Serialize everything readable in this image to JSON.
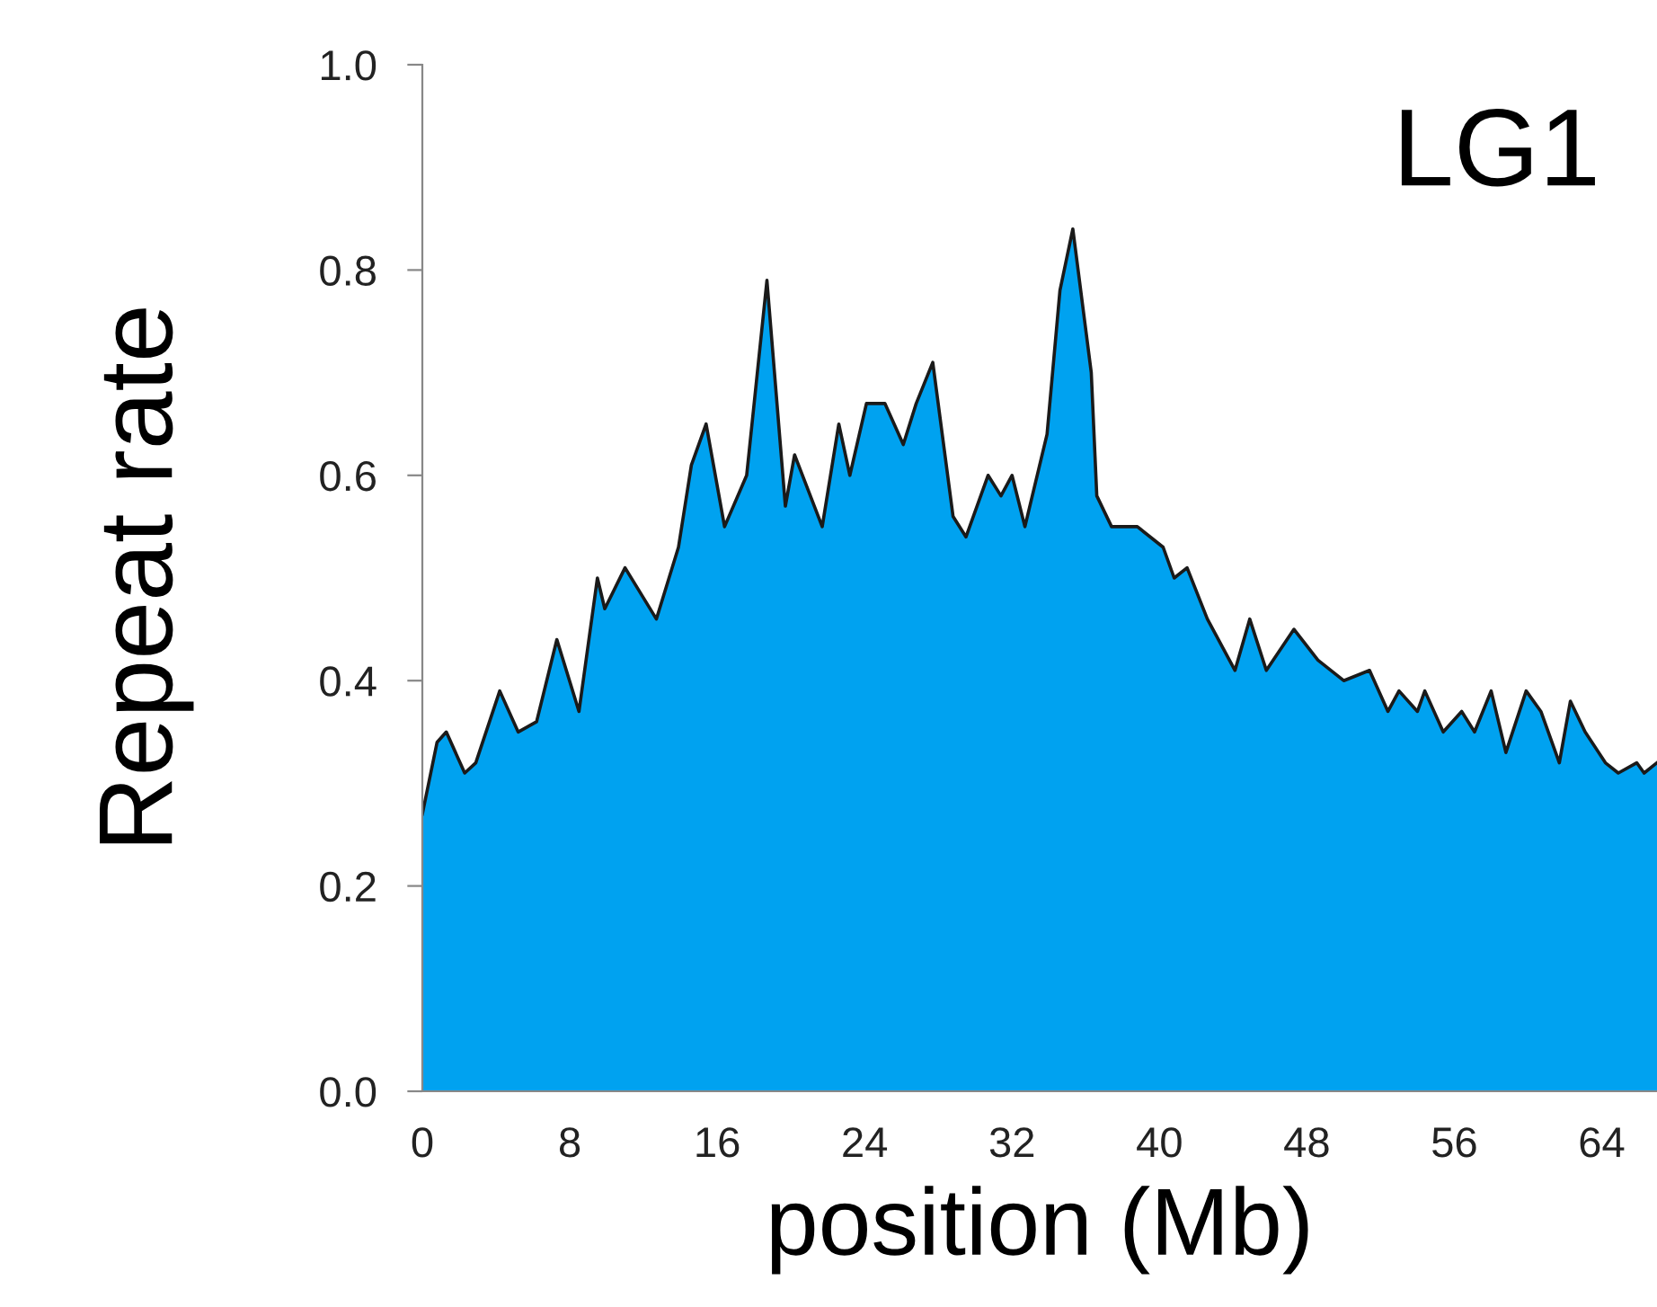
{
  "chart_data": {
    "type": "area",
    "title": "LG1",
    "xlabel": "position (Mb)",
    "ylabel": "Repeat rate",
    "xlim": [
      0,
      67
    ],
    "ylim": [
      0,
      1.0
    ],
    "xticks": [
      0,
      8,
      16,
      24,
      32,
      40,
      48,
      56,
      64
    ],
    "yticks": [
      {
        "value": 0,
        "label": "0.0"
      },
      0.2,
      0.4,
      0.6,
      0.8,
      {
        "value": 1,
        "label": "1.0"
      }
    ],
    "grid": false,
    "legend": false,
    "series": [
      {
        "color": "#00a2f0",
        "x": [
          0,
          0.8,
          1.3,
          2.3,
          2.9,
          4.2,
          5.2,
          6.2,
          7.3,
          8.5,
          9.5,
          9.9,
          11.0,
          12.7,
          13.9,
          14.6,
          15.4,
          16.4,
          17.6,
          18.7,
          19.7,
          20.2,
          21.7,
          22.6,
          23.2,
          24.1,
          25.1,
          26.1,
          26.8,
          27.7,
          28.8,
          29.5,
          30.7,
          31.4,
          32.0,
          32.7,
          33.9,
          34.6,
          35.3,
          36.3,
          36.6,
          37.4,
          38.8,
          40.2,
          40.8,
          41.5,
          42.6,
          44.1,
          44.9,
          45.8,
          47.3,
          48.6,
          50.0,
          51.4,
          52.4,
          53.0,
          54.0,
          54.4,
          55.4,
          56.4,
          57.1,
          58.0,
          58.8,
          59.9,
          60.7,
          61.7,
          62.3,
          63.1,
          64.2,
          64.9,
          65.9,
          66.3,
          67.0
        ],
        "values": [
          0.27,
          0.34,
          0.35,
          0.31,
          0.32,
          0.39,
          0.35,
          0.36,
          0.44,
          0.37,
          0.5,
          0.47,
          0.51,
          0.46,
          0.53,
          0.61,
          0.65,
          0.55,
          0.6,
          0.79,
          0.57,
          0.62,
          0.55,
          0.65,
          0.6,
          0.67,
          0.67,
          0.63,
          0.67,
          0.71,
          0.56,
          0.54,
          0.6,
          0.58,
          0.6,
          0.55,
          0.64,
          0.78,
          0.84,
          0.7,
          0.58,
          0.55,
          0.55,
          0.53,
          0.5,
          0.51,
          0.46,
          0.41,
          0.46,
          0.41,
          0.45,
          0.42,
          0.4,
          0.41,
          0.37,
          0.39,
          0.37,
          0.39,
          0.35,
          0.37,
          0.35,
          0.39,
          0.33,
          0.39,
          0.37,
          0.32,
          0.38,
          0.35,
          0.32,
          0.31,
          0.32,
          0.31,
          0.32
        ]
      }
    ]
  }
}
